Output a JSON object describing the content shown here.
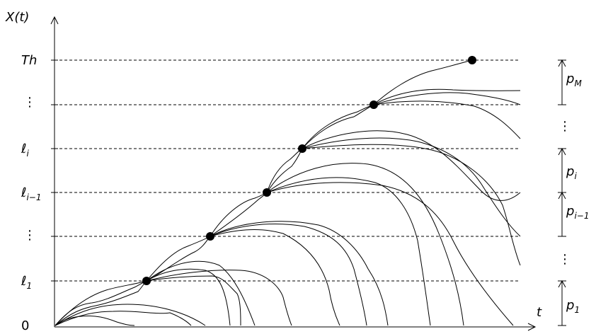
{
  "y_axis_label": "X(t)",
  "x_axis_label": "t",
  "levels": [
    {
      "label": "0",
      "base": "0",
      "sub": ""
    },
    {
      "label": "ℓ1",
      "base": "ℓ",
      "sub": "1"
    },
    {
      "label": "⋮",
      "base": "⋮",
      "sub": ""
    },
    {
      "label": "ℓi−1",
      "base": "ℓ",
      "sub": "i−1"
    },
    {
      "label": "ℓi",
      "base": "ℓ",
      "sub": "i"
    },
    {
      "label": "⋮",
      "base": "⋮",
      "sub": ""
    },
    {
      "label": "Th",
      "base": "Th",
      "sub": ""
    }
  ],
  "probabilities": [
    {
      "label": "p1",
      "base": "p",
      "sub": "1"
    },
    {
      "label": "⋮",
      "base": "⋮",
      "sub": ""
    },
    {
      "label": "pi−1",
      "base": "p",
      "sub": "i−1"
    },
    {
      "label": "pi",
      "base": "p",
      "sub": "i"
    },
    {
      "label": "⋮",
      "base": "⋮",
      "sub": ""
    },
    {
      "label": "pM",
      "base": "p",
      "sub": "M"
    }
  ]
}
